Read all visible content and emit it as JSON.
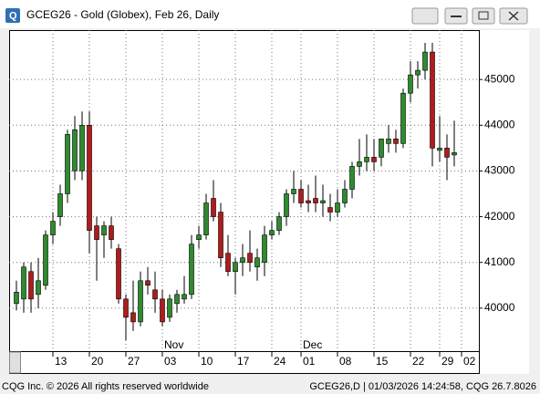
{
  "window": {
    "title": "GCEG26 - Gold (Globex), Feb 26, Daily"
  },
  "footer": {
    "left": "CQG Inc. © 2026 All rights reserved worldwide",
    "right": "GCEG26,D | 01/03/2026 14:24:58, CQG 26.7.8026"
  },
  "chart_data": {
    "type": "candlestick",
    "up_color": "#2e8b2e",
    "down_color": "#b01c1c",
    "grid": true,
    "ylim": [
      39060,
      46080
    ],
    "yticks": [
      40000,
      41000,
      42000,
      43000,
      44000,
      45000
    ],
    "xticks": [
      {
        "value": 5,
        "label": "13"
      },
      {
        "value": 10,
        "label": "20"
      },
      {
        "value": 15,
        "label": "27"
      },
      {
        "value": 20,
        "label": "03"
      },
      {
        "value": 25,
        "label": "10"
      },
      {
        "value": 30,
        "label": "17"
      },
      {
        "value": 35,
        "label": "24"
      },
      {
        "value": 39,
        "label": "01"
      },
      {
        "value": 44,
        "label": "08"
      },
      {
        "value": 49,
        "label": "15"
      },
      {
        "value": 54,
        "label": "22"
      },
      {
        "value": 58,
        "label": "29"
      },
      {
        "value": 61,
        "label": "02"
      }
    ],
    "month_labels": [
      {
        "value": 20,
        "label": "Nov"
      },
      {
        "value": 39,
        "label": "Dec"
      }
    ],
    "open": [
      40100,
      40200,
      40800,
      40300,
      40500,
      41600,
      42000,
      42500,
      43000,
      43000,
      44000,
      41800,
      41600,
      41800,
      41300,
      40200,
      39900,
      39700,
      40600,
      40400,
      40200,
      39800,
      40100,
      40200,
      40300,
      41500,
      41600,
      42400,
      42100,
      41200,
      40800,
      41000,
      41200,
      40900,
      41000,
      41600,
      41700,
      42000,
      42500,
      42600,
      42350,
      42400,
      42300,
      42200,
      42100,
      42300,
      42600,
      43100,
      43200,
      43300,
      43300,
      43600,
      43700,
      43600,
      44700,
      45100,
      45200,
      45600,
      43450,
      43500,
      43350
    ],
    "high": [
      40600,
      41000,
      41000,
      41100,
      41700,
      42100,
      42700,
      43900,
      44200,
      44300,
      44300,
      42000,
      41900,
      42000,
      41400,
      40300,
      40600,
      40800,
      40900,
      40800,
      40400,
      40300,
      40400,
      40700,
      41600,
      41800,
      42500,
      42800,
      42300,
      41600,
      41100,
      41400,
      41700,
      41300,
      41800,
      41900,
      42100,
      42600,
      43000,
      42800,
      42700,
      42900,
      42700,
      42500,
      42600,
      42800,
      43200,
      43700,
      43800,
      43700,
      43700,
      44000,
      43900,
      44800,
      45400,
      45400,
      45800,
      45800,
      44200,
      43800,
      44100
    ],
    "low": [
      39950,
      39900,
      39900,
      40000,
      40400,
      41400,
      41800,
      42300,
      42800,
      42800,
      41200,
      40600,
      41100,
      41300,
      40100,
      39300,
      39500,
      39600,
      40300,
      39900,
      39600,
      39700,
      39900,
      40100,
      40200,
      41300,
      41500,
      41900,
      40900,
      40700,
      40300,
      40700,
      40800,
      40600,
      40700,
      41500,
      41600,
      41800,
      42300,
      42200,
      42100,
      42100,
      42000,
      41900,
      42000,
      42200,
      42400,
      42900,
      43000,
      43000,
      43100,
      43400,
      43400,
      43500,
      44500,
      44800,
      45000,
      43100,
      43200,
      42800,
      43100
    ],
    "close": [
      40350,
      40900,
      40200,
      40600,
      41600,
      41900,
      42500,
      43800,
      43900,
      44000,
      41700,
      41500,
      41800,
      41500,
      40200,
      39800,
      39700,
      40600,
      40500,
      40200,
      39700,
      40200,
      40300,
      40300,
      41400,
      41600,
      42300,
      42000,
      41100,
      40800,
      41000,
      41100,
      41000,
      41100,
      41600,
      41700,
      42000,
      42500,
      42600,
      42300,
      42300,
      42300,
      42350,
      42100,
      42300,
      42600,
      43100,
      43200,
      43300,
      43200,
      43700,
      43700,
      43600,
      44700,
      45100,
      45200,
      45600,
      43500,
      43500,
      43300,
      43400
    ]
  }
}
